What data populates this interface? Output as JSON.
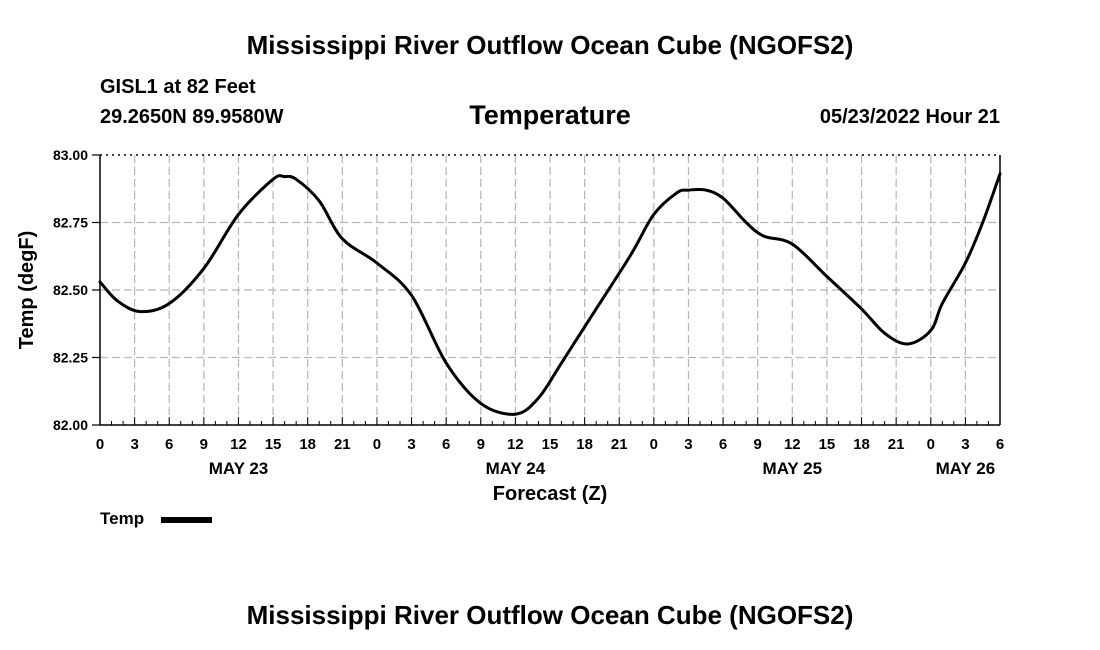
{
  "header": {
    "title": "Mississippi River Outflow Ocean Cube (NGOFS2)",
    "station": "GISL1 at 82 Feet",
    "coords": "29.2650N  89.9580W",
    "variable": "Temperature",
    "datetime": "05/23/2022 Hour 21"
  },
  "footer": {
    "title": "Mississippi River Outflow Ocean Cube (NGOFS2)"
  },
  "legend": {
    "label": "Temp"
  },
  "chart_data": {
    "type": "line",
    "title": "Temperature",
    "xlabel": "Forecast (Z)",
    "ylabel": "Temp (degF)",
    "ylim": [
      82.0,
      83.0
    ],
    "xlim_hours": [
      0,
      78
    ],
    "grid": true,
    "y_ticks": [
      "82.00",
      "82.25",
      "82.50",
      "82.75",
      "83.00"
    ],
    "y_tick_values": [
      82.0,
      82.25,
      82.5,
      82.75,
      83.0
    ],
    "x_ticks": [
      "0",
      "3",
      "6",
      "9",
      "12",
      "15",
      "18",
      "21",
      "0",
      "3",
      "6",
      "9",
      "12",
      "15",
      "18",
      "21",
      "0",
      "3",
      "6",
      "9",
      "12",
      "15",
      "18",
      "21",
      "0",
      "3",
      "6"
    ],
    "x_day_labels": [
      {
        "label": "MAY 23",
        "hour": 12
      },
      {
        "label": "MAY 24",
        "hour": 36
      },
      {
        "label": "MAY 25",
        "hour": 60
      },
      {
        "label": "MAY 26",
        "hour": 75
      }
    ],
    "series": [
      {
        "name": "Temp",
        "color": "#000000",
        "x": [
          0,
          1.5,
          3.5,
          6,
          9,
          12,
          15,
          16,
          17,
          19,
          21,
          24,
          27,
          30,
          33,
          36,
          38,
          40,
          43,
          46,
          48,
          50,
          51,
          52.5,
          54,
          56,
          57.5,
          60,
          63,
          66,
          68,
          70,
          72,
          73,
          75,
          76.5,
          78
        ],
        "values": [
          82.53,
          82.46,
          82.42,
          82.45,
          82.58,
          82.78,
          82.91,
          82.92,
          82.91,
          82.83,
          82.69,
          82.6,
          82.48,
          82.23,
          82.08,
          82.04,
          82.1,
          82.23,
          82.43,
          82.63,
          82.78,
          82.86,
          82.87,
          82.87,
          82.84,
          82.75,
          82.7,
          82.67,
          82.55,
          82.43,
          82.34,
          82.3,
          82.35,
          82.45,
          82.6,
          82.75,
          82.93
        ]
      }
    ]
  }
}
